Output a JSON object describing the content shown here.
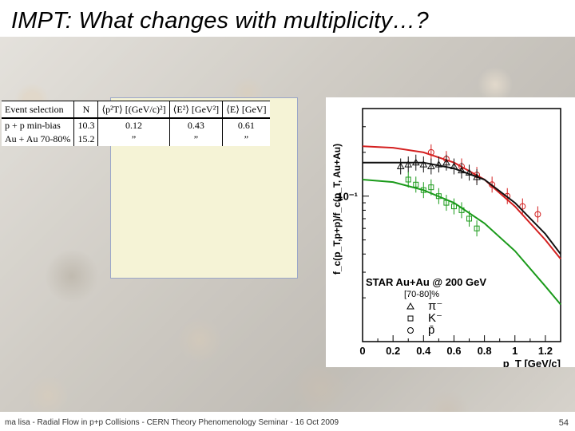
{
  "slide": {
    "title": "IMPT: What changes with multiplicity…?",
    "footer": "ma lisa - Radial Flow in p+p Collisions - CERN Theory Phenomenology Seminar - 16 Oct 2009",
    "page_number": "54"
  },
  "table": {
    "headers": [
      "Event selection",
      "N",
      "⟨p²T⟩ [(GeV/c)²]",
      "⟨E²⟩ [GeV²]",
      "⟨E⟩ [GeV]"
    ],
    "rows": [
      [
        "p + p min-bias",
        "10.3",
        "0.12",
        "0.43",
        "0.61"
      ],
      [
        "Au + Au 70-80%",
        "15.2",
        "”",
        "”",
        "”"
      ]
    ]
  },
  "chart_data": {
    "type": "line",
    "ylabel": "f_c(p_T,p+p)/f_c(p_T, Au+Au)",
    "xlabel": "p_T [GeV/c]",
    "xlim": [
      0,
      1.3
    ],
    "ylim": [
      0.01,
      0.4
    ],
    "yscale": "log",
    "xticks": [
      "0",
      "0.2",
      "0.4",
      "0.6",
      "0.8",
      "1",
      "1.2"
    ],
    "yticks": [
      "10⁻¹"
    ],
    "legend": {
      "title": "STAR Au+Au @ 200 GeV",
      "subtitle": "[70-80]%",
      "entries": [
        "π⁻",
        "K⁻",
        "p̄"
      ]
    },
    "series": [
      {
        "name": "p̄",
        "color": "#d42020",
        "curve": [
          [
            0,
            0.22
          ],
          [
            0.2,
            0.215
          ],
          [
            0.4,
            0.2
          ],
          [
            0.6,
            0.17
          ],
          [
            0.8,
            0.13
          ],
          [
            1.0,
            0.085
          ],
          [
            1.2,
            0.05
          ],
          [
            1.3,
            0.037
          ]
        ],
        "points": [
          [
            0.45,
            0.2
          ],
          [
            0.55,
            0.18
          ],
          [
            0.65,
            0.16
          ],
          [
            0.75,
            0.14
          ],
          [
            0.85,
            0.12
          ],
          [
            0.95,
            0.1
          ],
          [
            1.05,
            0.085
          ],
          [
            1.15,
            0.075
          ]
        ]
      },
      {
        "name": "π⁻",
        "color": "#111111",
        "curve": [
          [
            0,
            0.17
          ],
          [
            0.2,
            0.17
          ],
          [
            0.4,
            0.17
          ],
          [
            0.6,
            0.155
          ],
          [
            0.8,
            0.13
          ],
          [
            1.0,
            0.09
          ],
          [
            1.2,
            0.055
          ],
          [
            1.3,
            0.04
          ]
        ],
        "points": [
          [
            0.25,
            0.16
          ],
          [
            0.3,
            0.165
          ],
          [
            0.35,
            0.17
          ],
          [
            0.4,
            0.165
          ],
          [
            0.45,
            0.16
          ],
          [
            0.5,
            0.165
          ],
          [
            0.55,
            0.17
          ],
          [
            0.6,
            0.16
          ],
          [
            0.65,
            0.15
          ],
          [
            0.7,
            0.145
          ],
          [
            0.75,
            0.135
          ]
        ]
      },
      {
        "name": "K⁻",
        "color": "#1a9a1a",
        "curve": [
          [
            0,
            0.13
          ],
          [
            0.2,
            0.125
          ],
          [
            0.4,
            0.11
          ],
          [
            0.6,
            0.09
          ],
          [
            0.8,
            0.065
          ],
          [
            1.0,
            0.042
          ],
          [
            1.2,
            0.024
          ],
          [
            1.3,
            0.018
          ]
        ],
        "points": [
          [
            0.3,
            0.13
          ],
          [
            0.35,
            0.12
          ],
          [
            0.4,
            0.11
          ],
          [
            0.45,
            0.115
          ],
          [
            0.5,
            0.1
          ],
          [
            0.55,
            0.09
          ],
          [
            0.6,
            0.085
          ],
          [
            0.65,
            0.08
          ],
          [
            0.7,
            0.07
          ],
          [
            0.75,
            0.06
          ]
        ]
      }
    ]
  }
}
